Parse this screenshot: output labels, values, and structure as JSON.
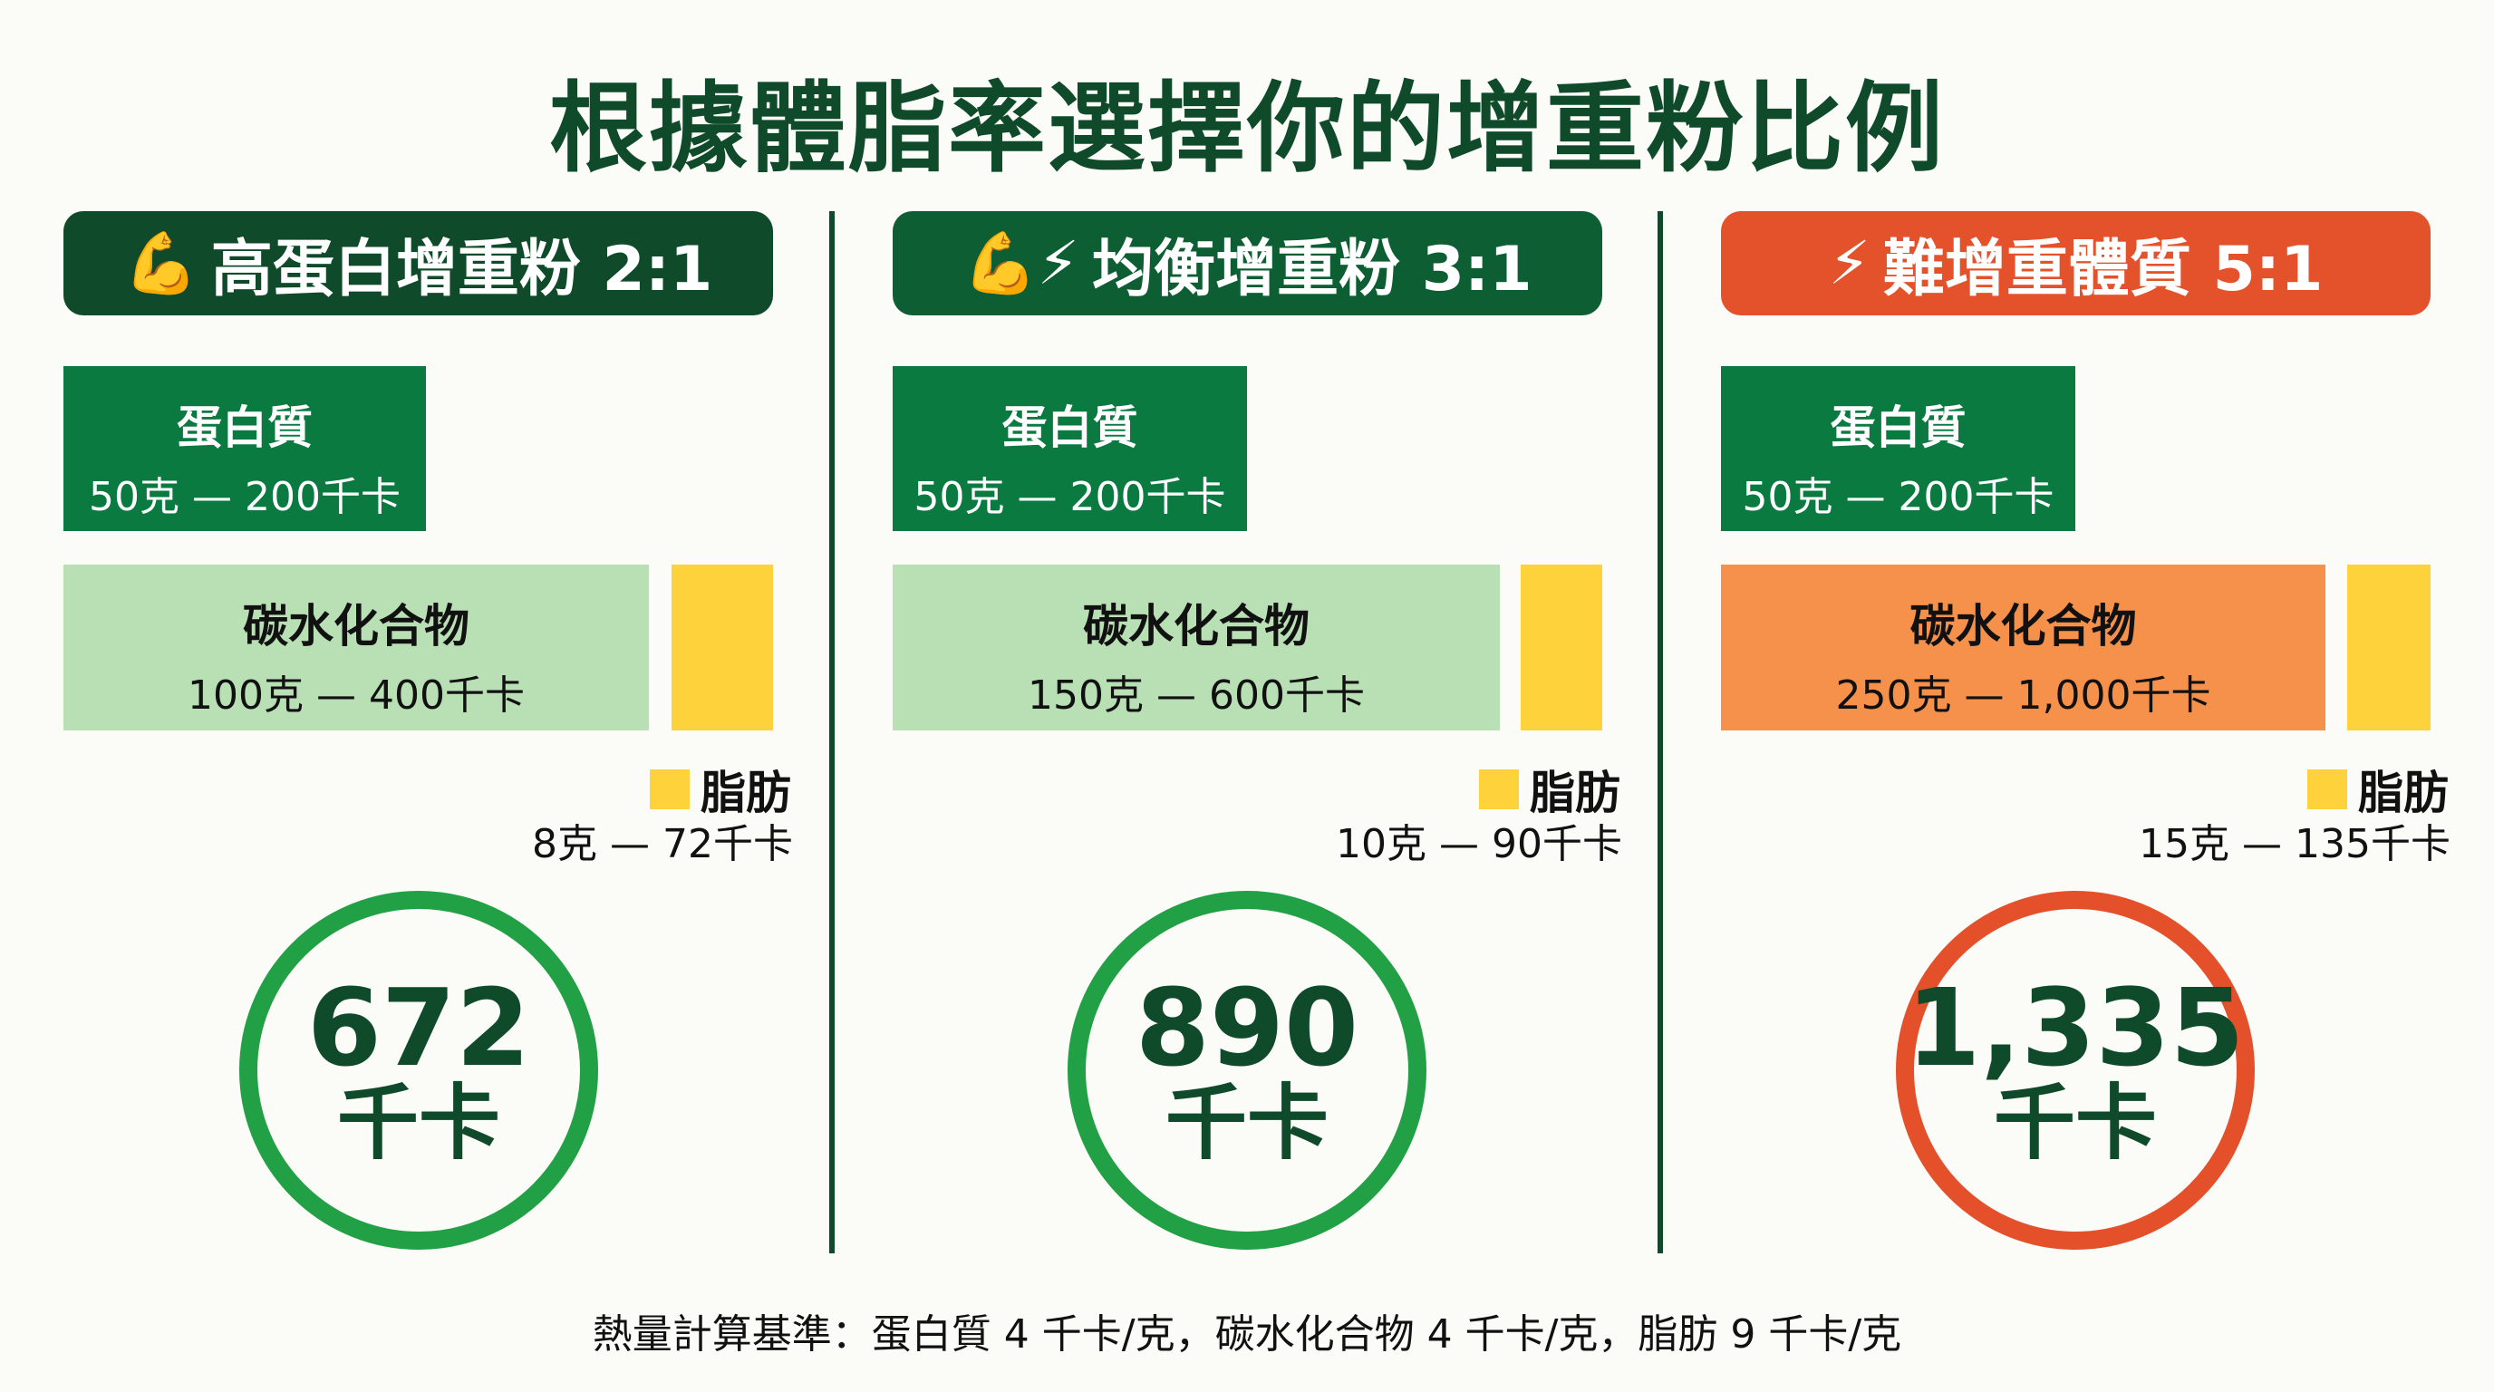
{
  "title": "根據體脂率選擇你的增重粉比例",
  "colors": {
    "dark_green": "#0f4a2b",
    "protein_green": "#0a7a40",
    "light_green": "#b9dfb5",
    "orange": "#f5914a",
    "header_orange": "#e4522c",
    "fat_yellow": "#fdd23b",
    "circle_green": "#22a045",
    "circle_red": "#e4502a"
  },
  "columns": [
    {
      "icons": [
        "flexed-biceps-icon"
      ],
      "icon_glyphs": "💪",
      "header": "高蛋白增重粉 2:1",
      "protein": {
        "label": "蛋白質",
        "value": "50克 — 200千卡"
      },
      "carb": {
        "label": "碳水化合物",
        "value": "100克 — 400千卡"
      },
      "fat": {
        "label": "脂肪",
        "value": "8克 — 72千卡"
      },
      "total": {
        "number": "672",
        "unit": "千卡"
      }
    },
    {
      "icons": [
        "flexed-biceps-icon",
        "lightning-icon"
      ],
      "icon_glyphs": "💪⚡",
      "header": "均衡增重粉 3:1",
      "protein": {
        "label": "蛋白質",
        "value": "50克 — 200千卡"
      },
      "carb": {
        "label": "碳水化合物",
        "value": "150克 — 600千卡"
      },
      "fat": {
        "label": "脂肪",
        "value": "10克 — 90千卡"
      },
      "total": {
        "number": "890",
        "unit": "千卡"
      }
    },
    {
      "icons": [
        "lightning-icon"
      ],
      "icon_glyphs": "⚡",
      "header": "難增重體質 5:1",
      "protein": {
        "label": "蛋白質",
        "value": "50克 — 200千卡"
      },
      "carb": {
        "label": "碳水化合物",
        "value": "250克 — 1,000千卡"
      },
      "fat": {
        "label": "脂肪",
        "value": "15克 — 135千卡"
      },
      "total": {
        "number": "1,335",
        "unit": "千卡"
      }
    }
  ],
  "footer": "熱量計算基準：蛋白質 4 千卡/克，碳水化合物 4 千卡/克，脂肪 9 千卡/克"
}
